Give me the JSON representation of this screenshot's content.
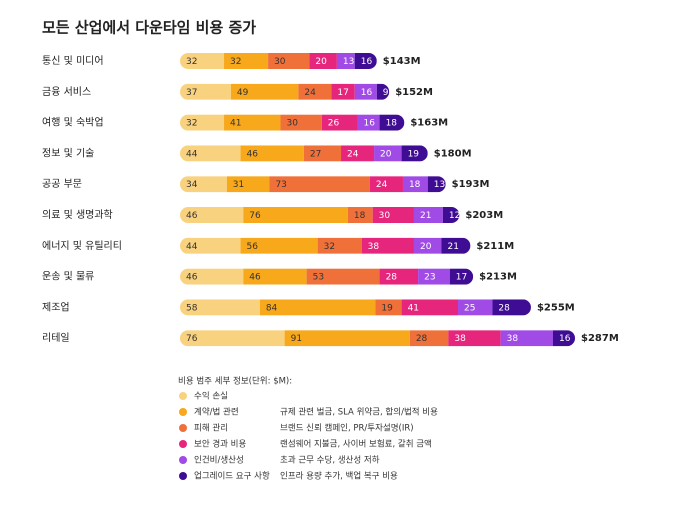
{
  "chart_data": {
    "type": "stacked_bar",
    "orientation": "horizontal",
    "title": "모든 산업에서 다운타임 비용 증가",
    "categories": [
      "통신 및 미디어",
      "금융 서비스",
      "여행 및 숙박업",
      "정보 및 기술",
      "공공 부문",
      "의료 및 생명과학",
      "에너지 및 유틸리티",
      "운송 및 물류",
      "제조업",
      "리테일"
    ],
    "series": [
      {
        "name": "수익 손실",
        "color": "#f9d27f",
        "values": [
          32,
          37,
          32,
          44,
          34,
          46,
          44,
          46,
          58,
          76
        ]
      },
      {
        "name": "계약/법 관련",
        "color": "#f7a81b",
        "description": "규제 관련 벌금, SLA 위약금, 합의/법적 비용",
        "values": [
          32,
          49,
          41,
          46,
          31,
          76,
          56,
          46,
          84,
          91
        ]
      },
      {
        "name": "피해 관리",
        "color": "#f0703a",
        "description": "브랜드 신뢰 캠페인, PR/투자설명(IR)",
        "values": [
          30,
          24,
          30,
          27,
          73,
          18,
          32,
          53,
          19,
          28
        ]
      },
      {
        "name": "보안 경과 비용",
        "color": "#e6267c",
        "description": "랜섬웨어 지불금, 사이버 보험료, 갈취 금액",
        "values": [
          20,
          17,
          26,
          24,
          24,
          30,
          38,
          28,
          41,
          38
        ]
      },
      {
        "name": "인건비/생산성",
        "color": "#a04be6",
        "description": "초과 근무 수당, 생산성 저하",
        "values": [
          13,
          16,
          16,
          20,
          18,
          21,
          20,
          23,
          25,
          38
        ]
      },
      {
        "name": "업그레이드 요구 사항",
        "color": "#3f0c94",
        "description": "인프라 용량 추가, 백업 복구 비용",
        "values": [
          16,
          9,
          18,
          19,
          13,
          12,
          21,
          17,
          28,
          16
        ]
      }
    ],
    "totals": {
      "values": [
        143,
        152,
        163,
        180,
        193,
        203,
        211,
        213,
        255,
        287
      ],
      "value_labels": [
        "$143M",
        "$152M",
        "$163M",
        "$180M",
        "$193M",
        "$203M",
        "$211M",
        "$213M",
        "$255M",
        "$287M"
      ]
    },
    "legend_title": "비용 범주 세부 정보(단위: $M):"
  }
}
